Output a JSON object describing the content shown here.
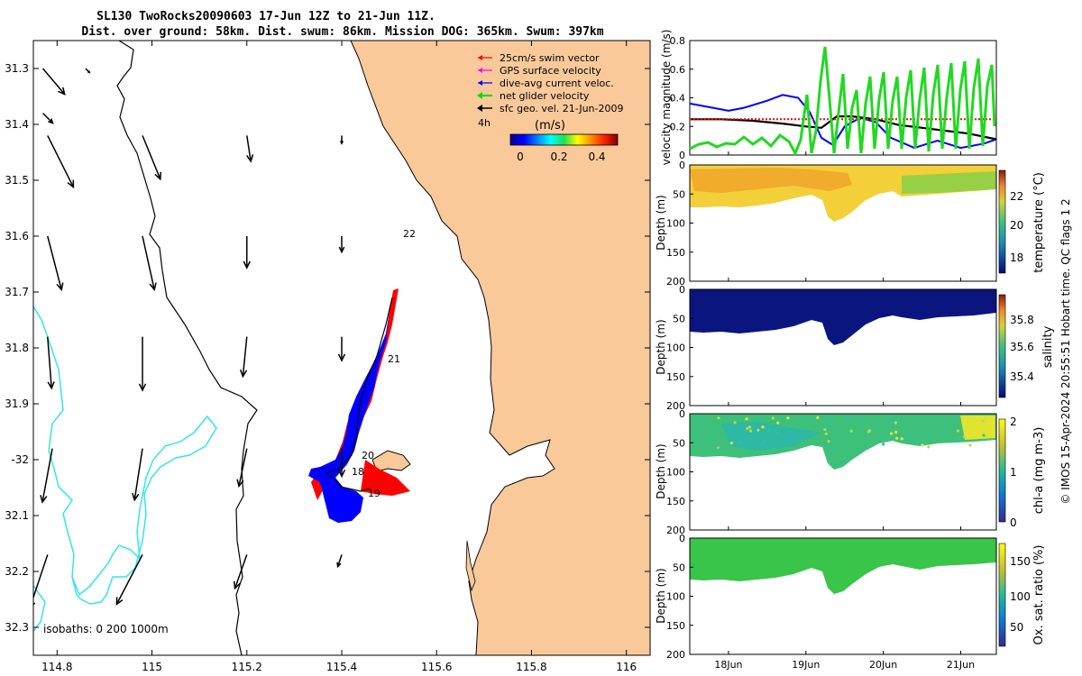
{
  "title": {
    "line1": "SL130 TwoRocks20090603 17-Jun 12Z to 21-Jun 11Z.",
    "line2": "Dist. over ground: 58km. Dist. swum: 86km. Mission DOG: 365km. Swum: 397km"
  },
  "colors": {
    "land": "#f9c99a",
    "track": "#0000ff",
    "swim": "#ff0000",
    "isobath": "#33e6e6",
    "net": "#00dd00"
  },
  "map": {
    "lon_ticks": [
      "114.8",
      "115",
      "115.2",
      "115.4",
      "115.6",
      "115.8",
      "116"
    ],
    "lat_ticks": [
      "31.3",
      "31.4",
      "31.5",
      "31.6",
      "31.7",
      "31.8",
      "31.9",
      "-32",
      "32.1",
      "32.2",
      "32.3"
    ],
    "xlim": [
      114.75,
      116.05
    ],
    "ylim": [
      -32.35,
      -31.25
    ],
    "day_labels": [
      {
        "text": "22",
        "lon": 115.55,
        "lat": -31.6
      },
      {
        "text": "21",
        "lon": 115.51,
        "lat": -31.84
      },
      {
        "text": "20",
        "lon": 115.44,
        "lat": -31.99
      },
      {
        "text": "18",
        "lon": 115.41,
        "lat": -32.01
      },
      {
        "text": "19",
        "lon": 115.47,
        "lat": -32.04
      }
    ],
    "isobaths_label": "isobaths: 0   200  1000m",
    "legend": [
      {
        "label": "25cm/s swim vector",
        "color": "#ff0000"
      },
      {
        "label": "GPS surface velocity",
        "color": "#ff00ff"
      },
      {
        "label": "dive-avg current veloc.",
        "color": "#0000ff"
      },
      {
        "label": "net glider velocity",
        "color": "#00dd00"
      },
      {
        "label": "sfc geo. vel. 21-Jun-2009",
        "color": "#000000"
      }
    ],
    "interval_label": "4h",
    "colorbar": {
      "label": "(m/s)",
      "ticks": [
        "0",
        "0.2",
        "0.4"
      ]
    },
    "geo_vectors": [
      {
        "lon": 114.77,
        "lat": -31.3,
        "u": 0.11,
        "v": -0.13
      },
      {
        "lon": 114.86,
        "lat": -31.3,
        "u": 0.02,
        "v": -0.02
      },
      {
        "lon": 114.77,
        "lat": -31.38,
        "u": 0.05,
        "v": -0.05
      },
      {
        "lon": 114.78,
        "lat": -31.42,
        "u": 0.13,
        "v": -0.26
      },
      {
        "lon": 114.98,
        "lat": -31.42,
        "u": 0.09,
        "v": -0.22
      },
      {
        "lon": 115.2,
        "lat": -31.42,
        "u": 0.02,
        "v": -0.13
      },
      {
        "lon": 115.4,
        "lat": -31.42,
        "u": 0.0,
        "v": -0.04
      },
      {
        "lon": 114.78,
        "lat": -31.6,
        "u": 0.07,
        "v": -0.27
      },
      {
        "lon": 114.98,
        "lat": -31.6,
        "u": 0.06,
        "v": -0.27
      },
      {
        "lon": 115.2,
        "lat": -31.6,
        "u": 0.0,
        "v": -0.16
      },
      {
        "lon": 115.4,
        "lat": -31.6,
        "u": 0.0,
        "v": -0.08
      },
      {
        "lon": 114.78,
        "lat": -31.78,
        "u": 0.02,
        "v": -0.26
      },
      {
        "lon": 114.98,
        "lat": -31.78,
        "u": 0.0,
        "v": -0.27
      },
      {
        "lon": 115.2,
        "lat": -31.78,
        "u": -0.02,
        "v": -0.2
      },
      {
        "lon": 115.4,
        "lat": -31.78,
        "u": 0.0,
        "v": -0.12
      },
      {
        "lon": 114.79,
        "lat": -31.98,
        "u": -0.05,
        "v": -0.27
      },
      {
        "lon": 114.98,
        "lat": -31.98,
        "u": -0.04,
        "v": -0.26
      },
      {
        "lon": 115.2,
        "lat": -31.98,
        "u": -0.04,
        "v": -0.19
      },
      {
        "lon": 115.4,
        "lat": -31.98,
        "u": 0.0,
        "v": -0.14
      },
      {
        "lon": 114.78,
        "lat": -32.17,
        "u": -0.09,
        "v": -0.27
      },
      {
        "lon": 114.98,
        "lat": -32.17,
        "u": -0.13,
        "v": -0.25
      },
      {
        "lon": 115.2,
        "lat": -32.17,
        "u": -0.06,
        "v": -0.17
      },
      {
        "lon": 115.4,
        "lat": -32.17,
        "u": -0.02,
        "v": -0.06
      }
    ]
  },
  "velocity": {
    "ylabel": "velocity magnitude (m/s)",
    "yticks": [
      "0",
      "0.2",
      "0.4",
      "0.6",
      "0.8"
    ],
    "ylim": [
      0,
      0.8
    ],
    "xlim": [
      17.5,
      21.46
    ],
    "series": [
      {
        "name": "dive-avg current veloc.",
        "color": "#0000ff",
        "t": [
          17.5,
          17.8,
          18.0,
          18.2,
          18.5,
          18.7,
          18.9,
          19.05,
          19.2,
          19.35,
          19.5,
          19.7,
          19.9,
          20.1,
          20.4,
          20.7,
          21.0,
          21.3,
          21.46
        ],
        "values": [
          0.36,
          0.33,
          0.31,
          0.33,
          0.38,
          0.42,
          0.4,
          0.3,
          0.12,
          0.07,
          0.2,
          0.26,
          0.23,
          0.12,
          0.05,
          0.1,
          0.05,
          0.08,
          0.11
        ]
      },
      {
        "name": "sfc geo. vel.",
        "color": "#000000",
        "t": [
          17.5,
          17.9,
          18.3,
          18.7,
          19.0,
          19.2,
          19.4,
          19.6,
          19.9,
          20.2,
          20.5,
          20.8,
          21.1,
          21.46
        ],
        "values": [
          0.25,
          0.25,
          0.24,
          0.22,
          0.2,
          0.19,
          0.27,
          0.27,
          0.25,
          0.21,
          0.19,
          0.17,
          0.15,
          0.11
        ]
      },
      {
        "name": "25cm/s swim vector",
        "color": "#ff0000",
        "t": [
          17.5,
          18.5,
          19.5,
          20.5,
          21.46
        ],
        "values": [
          0.25,
          0.25,
          0.25,
          0.25,
          0.25
        ]
      }
    ]
  },
  "sections": [
    {
      "name": "temperature",
      "label": "temperature (°C)",
      "cticks": [
        "18",
        "20",
        "22"
      ],
      "clim": [
        16.8,
        23.6
      ],
      "fill": "#f3cf3a",
      "accent": "#f09a2c"
    },
    {
      "name": "salinity",
      "label": "salinity",
      "cticks": [
        "35.4",
        "35.6",
        "35.8"
      ],
      "clim": [
        35.3,
        35.95
      ],
      "fill": "#0a1580",
      "accent": "#1a2ea5"
    },
    {
      "name": "chl-a",
      "label": "chl-a (mg m-3)",
      "cticks": [
        "0",
        "1",
        "2"
      ],
      "clim": [
        0,
        2
      ],
      "fill": "#3dc07a",
      "accent": "#e2e230"
    },
    {
      "name": "oxygen",
      "label": "Ox. sat. ratio (%)",
      "cticks": [
        "50",
        "100",
        "150"
      ],
      "clim": [
        25,
        175
      ],
      "fill": "#39c44a",
      "accent": "#4fd03c"
    }
  ],
  "depth": {
    "ylabel": "Depth (m)",
    "yticks": [
      "0",
      "50",
      "100",
      "150",
      "200"
    ]
  },
  "time_ticks": [
    "18Jun",
    "19Jun",
    "20Jun",
    "21Jun"
  ],
  "footer": "© IMOS 15-Apr-2024 20:55:51 Hobart time. QC flags 1  2"
}
